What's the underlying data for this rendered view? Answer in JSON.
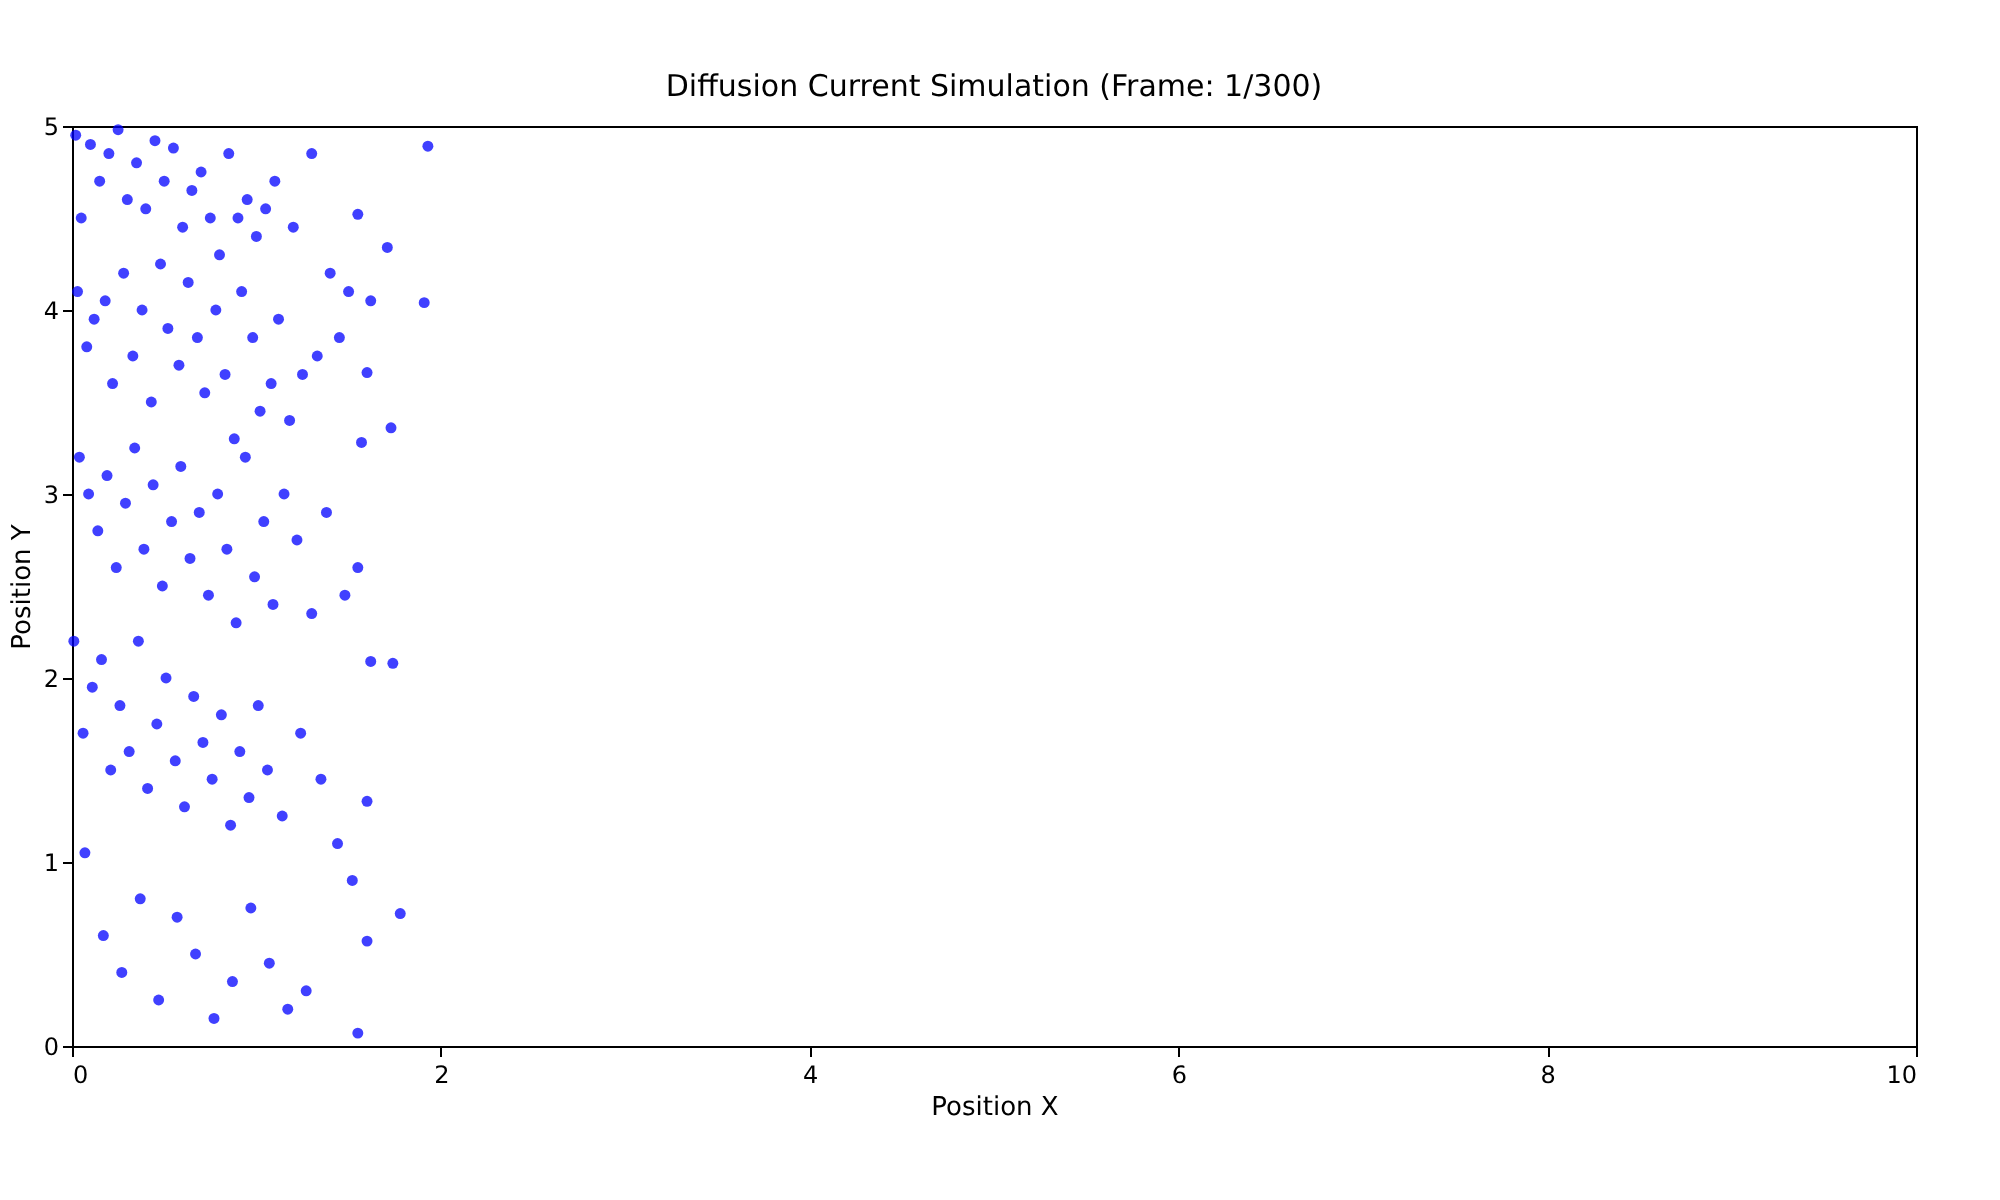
{
  "chart_data": {
    "type": "scatter",
    "title": "Diffusion Current Simulation (Frame: 1/300)",
    "xlabel": "Position X",
    "ylabel": "Position Y",
    "xlim": [
      0,
      10
    ],
    "ylim": [
      0,
      5
    ],
    "xticks": [
      0,
      2,
      4,
      6,
      8,
      10
    ],
    "yticks": [
      0,
      1,
      2,
      3,
      4,
      5
    ],
    "grid": false,
    "marker": "circle",
    "series": [
      {
        "color": "#0000ff",
        "x": [
          0.02,
          0.05,
          0.1,
          0.15,
          0.2,
          0.25,
          0.3,
          0.35,
          0.4,
          0.45,
          0.5,
          0.55,
          0.6,
          0.65,
          0.7,
          0.75,
          0.8,
          0.85,
          0.9,
          0.95,
          1.0,
          1.05,
          1.1,
          1.2,
          1.3,
          1.4,
          1.5,
          1.93,
          1.91,
          1.71,
          1.73,
          1.78,
          1.74,
          1.62,
          1.6,
          1.55,
          1.6,
          1.57,
          1.55,
          1.6,
          1.62,
          1.55,
          0.03,
          0.08,
          0.12,
          0.18,
          0.22,
          0.28,
          0.33,
          0.38,
          0.43,
          0.48,
          0.52,
          0.58,
          0.63,
          0.68,
          0.72,
          0.78,
          0.83,
          0.88,
          0.92,
          0.98,
          1.02,
          1.08,
          1.12,
          1.18,
          1.25,
          1.33,
          1.45,
          0.04,
          0.09,
          0.14,
          0.19,
          0.24,
          0.29,
          0.34,
          0.39,
          0.44,
          0.49,
          0.54,
          0.59,
          0.64,
          0.69,
          0.74,
          0.79,
          0.84,
          0.89,
          0.94,
          0.99,
          1.04,
          1.09,
          1.15,
          1.22,
          1.3,
          1.38,
          1.48,
          0.01,
          0.06,
          0.11,
          0.16,
          0.21,
          0.26,
          0.31,
          0.36,
          0.41,
          0.46,
          0.51,
          0.56,
          0.61,
          0.66,
          0.71,
          0.76,
          0.81,
          0.86,
          0.91,
          0.96,
          1.01,
          1.06,
          1.14,
          1.24,
          1.35,
          1.44,
          1.52,
          0.07,
          0.17,
          0.27,
          0.37,
          0.47,
          0.57,
          0.67,
          0.77,
          0.87,
          0.97,
          1.07,
          1.17,
          1.27
        ],
        "values": [
          4.95,
          4.5,
          4.9,
          4.7,
          4.85,
          4.98,
          4.6,
          4.8,
          4.55,
          4.92,
          4.7,
          4.88,
          4.45,
          4.65,
          4.75,
          4.5,
          4.3,
          4.85,
          4.5,
          4.6,
          4.4,
          4.55,
          4.7,
          4.45,
          4.85,
          4.2,
          4.1,
          4.89,
          4.04,
          4.34,
          3.36,
          0.72,
          2.08,
          2.09,
          1.33,
          2.6,
          3.66,
          3.28,
          0.07,
          0.57,
          4.05,
          4.52,
          4.1,
          3.8,
          3.95,
          4.05,
          3.6,
          4.2,
          3.75,
          4.0,
          3.5,
          4.25,
          3.9,
          3.7,
          4.15,
          3.85,
          3.55,
          4.0,
          3.65,
          3.3,
          4.1,
          3.85,
          3.45,
          3.6,
          3.95,
          3.4,
          3.65,
          3.75,
          3.85,
          3.2,
          3.0,
          2.8,
          3.1,
          2.6,
          2.95,
          3.25,
          2.7,
          3.05,
          2.5,
          2.85,
          3.15,
          2.65,
          2.9,
          2.45,
          3.0,
          2.7,
          2.3,
          3.2,
          2.55,
          2.85,
          2.4,
          3.0,
          2.75,
          2.35,
          2.9,
          2.45,
          2.2,
          1.7,
          1.95,
          2.1,
          1.5,
          1.85,
          1.6,
          2.2,
          1.4,
          1.75,
          2.0,
          1.55,
          1.3,
          1.9,
          1.65,
          1.45,
          1.8,
          1.2,
          1.6,
          1.35,
          1.85,
          1.5,
          1.25,
          1.7,
          1.45,
          1.1,
          0.9,
          1.05,
          0.6,
          0.4,
          0.8,
          0.25,
          0.7,
          0.5,
          0.15,
          0.35,
          0.75,
          0.45,
          0.2,
          0.3
        ]
      }
    ]
  }
}
